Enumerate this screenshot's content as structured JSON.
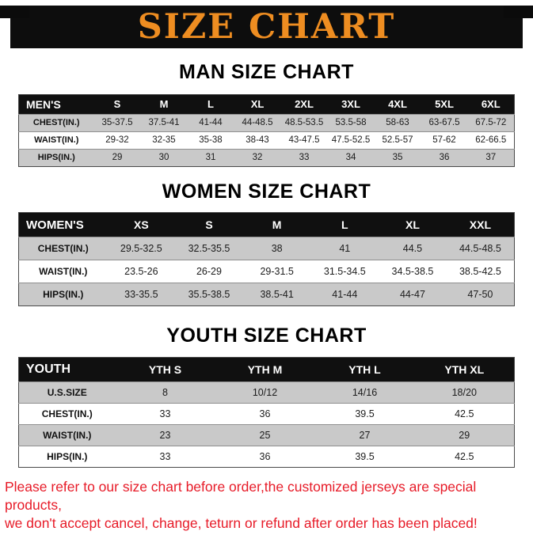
{
  "banner": {
    "title": "SIZE CHART"
  },
  "colors": {
    "banner_bg": "#0d0d0d",
    "banner_text": "#ee8d21",
    "table_header_bg": "#101010",
    "row_alt": "#c9c9c9",
    "note_text": "#e71b28"
  },
  "sections": [
    {
      "heading": "MAN SIZE CHART",
      "table": {
        "header": [
          "MEN'S",
          "S",
          "M",
          "L",
          "XL",
          "2XL",
          "3XL",
          "4XL",
          "5XL",
          "6XL"
        ],
        "rows": [
          [
            "CHEST(IN.)",
            "35-37.5",
            "37.5-41",
            "41-44",
            "44-48.5",
            "48.5-53.5",
            "53.5-58",
            "58-63",
            "63-67.5",
            "67.5-72"
          ],
          [
            "WAIST(IN.)",
            "29-32",
            "32-35",
            "35-38",
            "38-43",
            "43-47.5",
            "47.5-52.5",
            "52.5-57",
            "57-62",
            "62-66.5"
          ],
          [
            "HIPS(IN.)",
            "29",
            "30",
            "31",
            "32",
            "33",
            "34",
            "35",
            "36",
            "37"
          ]
        ]
      }
    },
    {
      "heading": "WOMEN SIZE CHART",
      "table": {
        "header": [
          "WOMEN'S",
          "XS",
          "S",
          "M",
          "L",
          "XL",
          "XXL"
        ],
        "rows": [
          [
            "CHEST(IN.)",
            "29.5-32.5",
            "32.5-35.5",
            "38",
            "41",
            "44.5",
            "44.5-48.5"
          ],
          [
            "WAIST(IN.)",
            "23.5-26",
            "26-29",
            "29-31.5",
            "31.5-34.5",
            "34.5-38.5",
            "38.5-42.5"
          ],
          [
            "HIPS(IN.)",
            "33-35.5",
            "35.5-38.5",
            "38.5-41",
            "41-44",
            "44-47",
            "47-50"
          ]
        ]
      }
    },
    {
      "heading": "YOUTH SIZE CHART",
      "table": {
        "header": [
          "YOUTH",
          "YTH S",
          "YTH M",
          "YTH L",
          "YTH XL"
        ],
        "rows": [
          [
            "U.S.SIZE",
            "8",
            "10/12",
            "14/16",
            "18/20"
          ],
          [
            "CHEST(IN.)",
            "33",
            "36",
            "39.5",
            "42.5"
          ],
          [
            "WAIST(IN.)",
            "23",
            "25",
            "27",
            "29"
          ],
          [
            "HIPS(IN.)",
            "33",
            "36",
            "39.5",
            "42.5"
          ]
        ]
      }
    }
  ],
  "note_lines": [
    "Please refer to our size chart before order,the customized jerseys are special products,",
    "we don't accept cancel, change, teturn or refund after order has been placed!"
  ]
}
